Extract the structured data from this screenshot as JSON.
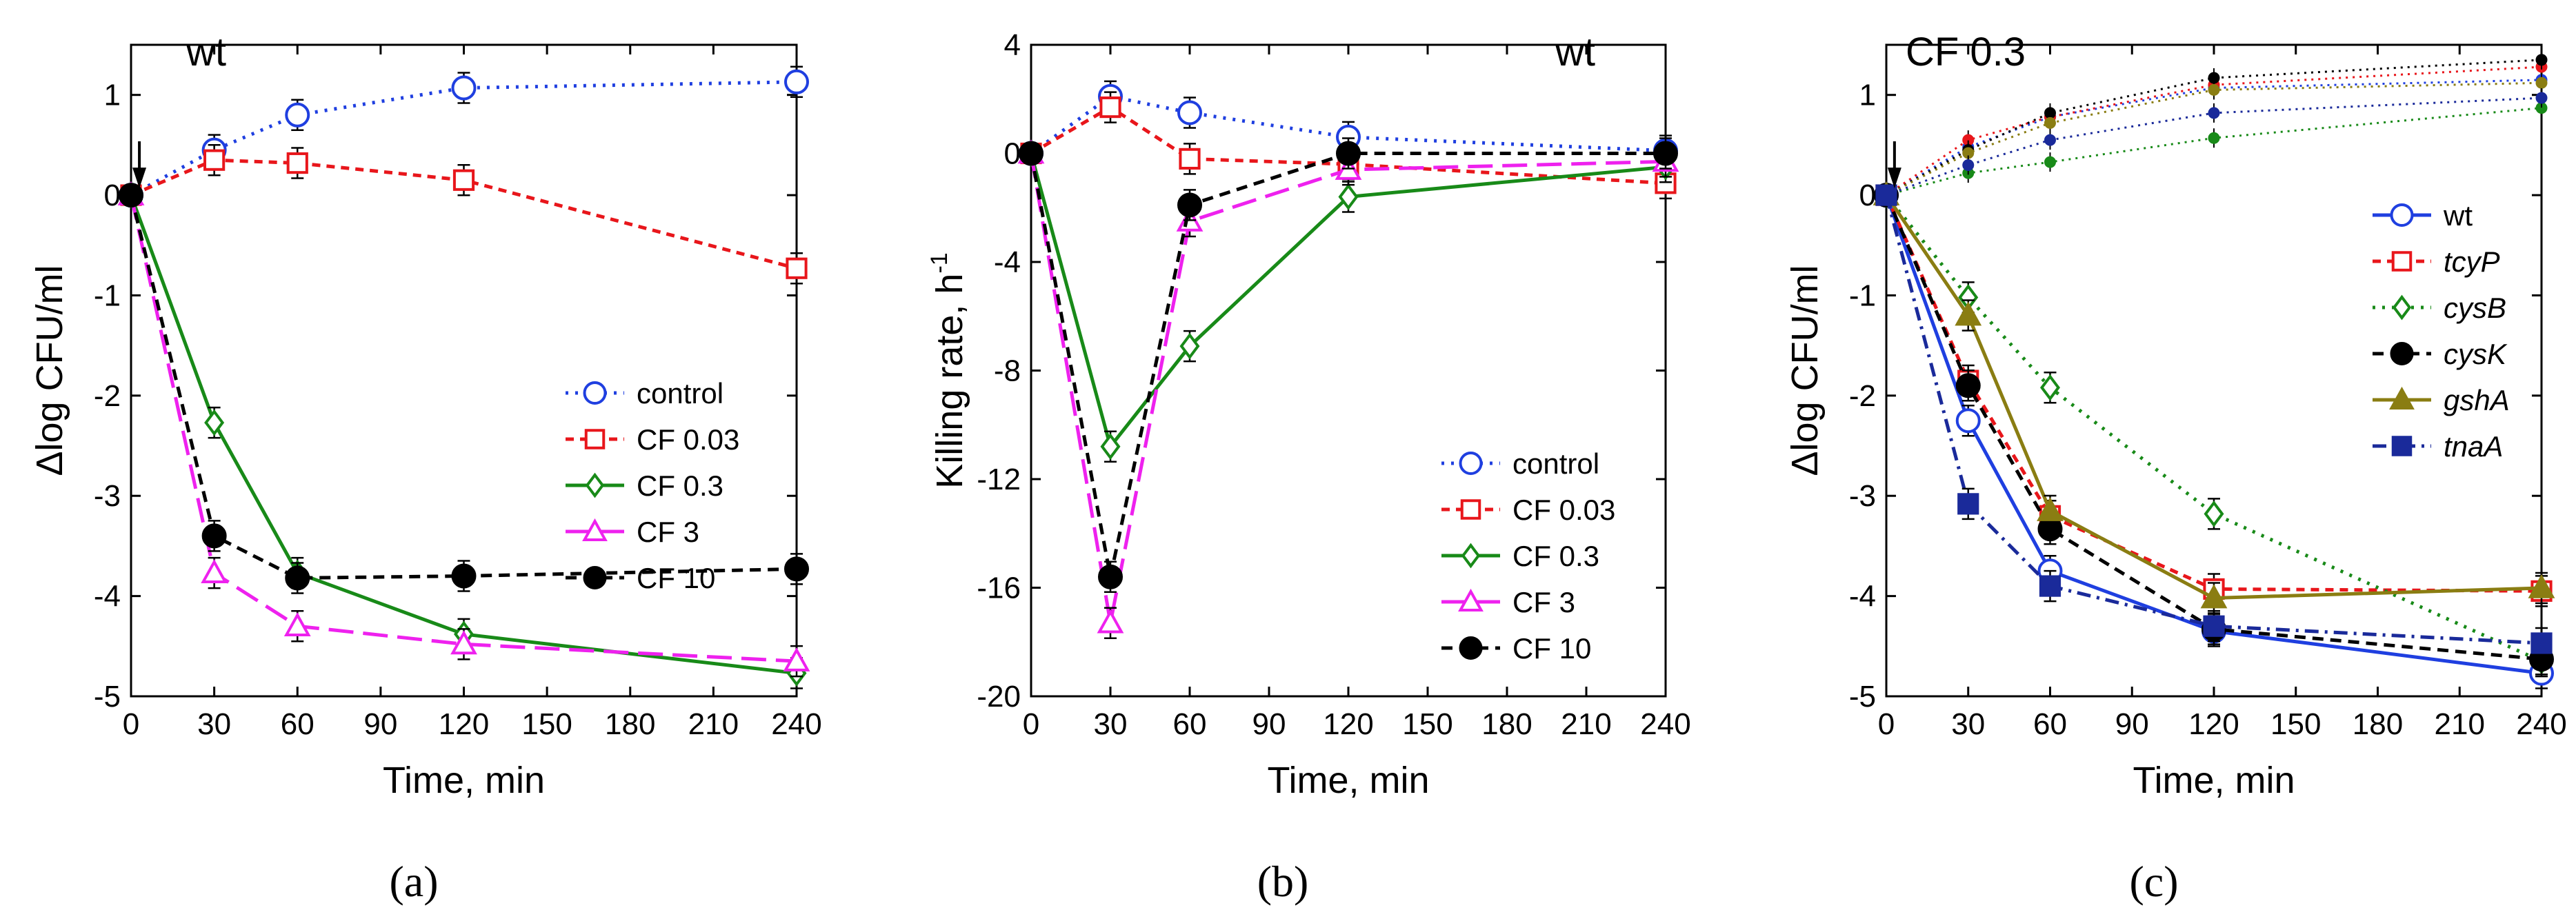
{
  "chart_data": [
    {
      "type": "line",
      "panel_label": "(a)",
      "title": "wt",
      "xlabel": "Time, min",
      "ylabel": "Δlog CFU/ml",
      "xlim": [
        0,
        240
      ],
      "ylim": [
        -5,
        1.5
      ],
      "xticks": [
        "0",
        "30",
        "60",
        "90",
        "120",
        "150",
        "180",
        "210",
        "240"
      ],
      "yticks": [
        "-5",
        "-4",
        "-3",
        "-2",
        "-1",
        "0",
        "1"
      ],
      "ytick_values": [
        -5,
        -4,
        -3,
        -2,
        -1,
        0,
        1
      ],
      "x": [
        0,
        30,
        60,
        120,
        240
      ],
      "arrow_x": 3,
      "legend": "right",
      "series": [
        {
          "name": "control",
          "color": "#1f3fe0",
          "marker": "circle",
          "dash": "dot",
          "values": [
            0,
            0.45,
            0.8,
            1.07,
            1.13
          ]
        },
        {
          "name": "CF 0.03",
          "color": "#e8161b",
          "marker": "square",
          "dash": "dash-short",
          "values": [
            0,
            0.35,
            0.32,
            0.15,
            -0.73
          ]
        },
        {
          "name": "CF 0.3",
          "color": "#188a18",
          "marker": "diamond",
          "dash": "solid",
          "values": [
            0,
            -2.27,
            -3.77,
            -4.38,
            -4.77
          ]
        },
        {
          "name": "CF 3",
          "color": "#ee21ee",
          "marker": "triangle",
          "dash": "dash-long",
          "values": [
            0,
            -3.77,
            -4.3,
            -4.48,
            -4.65
          ]
        },
        {
          "name": "CF 10",
          "color": "#000000",
          "marker": "filled-circle",
          "dash": "dash",
          "values": [
            0,
            -3.4,
            -3.82,
            -3.8,
            -3.73
          ]
        }
      ]
    },
    {
      "type": "line",
      "panel_label": "(b)",
      "title": "wt",
      "xlabel": "Time, min",
      "ylabel": "Killing rate, h",
      "ylabel_sup": "-1",
      "xlim": [
        0,
        240
      ],
      "ylim": [
        -20,
        4
      ],
      "xticks": [
        "0",
        "30",
        "60",
        "90",
        "120",
        "150",
        "180",
        "210",
        "240"
      ],
      "yticks": [
        "-20",
        "-16",
        "-12",
        "-8",
        "-4",
        "0",
        "4"
      ],
      "ytick_values": [
        -20,
        -16,
        -12,
        -8,
        -4,
        0,
        4
      ],
      "x": [
        0,
        30,
        60,
        120,
        240
      ],
      "legend": "right",
      "series": [
        {
          "name": "control",
          "color": "#1f3fe0",
          "marker": "circle",
          "dash": "dot",
          "values": [
            0,
            2.1,
            1.5,
            0.6,
            0.1
          ]
        },
        {
          "name": "CF 0.03",
          "color": "#e8161b",
          "marker": "square",
          "dash": "dash-short",
          "values": [
            0,
            1.7,
            -0.2,
            -0.4,
            -1.1
          ]
        },
        {
          "name": "CF 0.3",
          "color": "#188a18",
          "marker": "diamond",
          "dash": "solid",
          "values": [
            0,
            -10.8,
            -7.1,
            -1.6,
            -0.5
          ]
        },
        {
          "name": "CF 3",
          "color": "#ee21ee",
          "marker": "triangle",
          "dash": "dash-long",
          "values": [
            0,
            -17.3,
            -2.5,
            -0.6,
            -0.3
          ]
        },
        {
          "name": "CF 10",
          "color": "#000000",
          "marker": "filled-circle",
          "dash": "dash",
          "values": [
            0,
            -15.6,
            -1.9,
            0,
            0
          ]
        }
      ]
    },
    {
      "type": "line",
      "panel_label": "(c)",
      "title": "CF 0.3",
      "xlabel": "Time, min",
      "ylabel": "Δlog CFU/ml",
      "xlim": [
        0,
        240
      ],
      "ylim": [
        -5,
        1.5
      ],
      "xticks": [
        "0",
        "30",
        "60",
        "90",
        "120",
        "150",
        "180",
        "210",
        "240"
      ],
      "yticks": [
        "-5",
        "-4",
        "-3",
        "-2",
        "-1",
        "0",
        "1"
      ],
      "ytick_values": [
        -5,
        -4,
        -3,
        -2,
        -1,
        0,
        1
      ],
      "x": [
        0,
        30,
        60,
        120,
        240
      ],
      "arrow_x": 3,
      "legend": "right",
      "series": [
        {
          "name": "wt",
          "italic": false,
          "color": "#1f3fe0",
          "marker": "circle",
          "dash": "solid",
          "values": [
            0,
            -2.25,
            -3.75,
            -4.35,
            -4.77
          ]
        },
        {
          "name": "tcyP",
          "italic": true,
          "color": "#e8161b",
          "marker": "square",
          "dash": "dash-short",
          "values": [
            0,
            -1.85,
            -3.2,
            -3.93,
            -3.95
          ]
        },
        {
          "name": "cysB",
          "italic": true,
          "color": "#188a18",
          "marker": "diamond",
          "dash": "dot",
          "values": [
            0,
            -1.02,
            -1.92,
            -3.18,
            -4.65
          ]
        },
        {
          "name": "cysK",
          "italic": true,
          "color": "#000000",
          "marker": "filled-circle",
          "dash": "dash",
          "values": [
            0,
            -1.9,
            -3.33,
            -4.33,
            -4.63
          ]
        },
        {
          "name": "gshA",
          "italic": true,
          "color": "#8a7d12",
          "marker": "filled-triangle",
          "dash": "solid",
          "values": [
            0,
            -1.2,
            -3.15,
            -4.02,
            -3.92
          ]
        },
        {
          "name": "tnaA",
          "italic": true,
          "color": "#1a2a9a",
          "marker": "filled-square",
          "dash": "dashdot",
          "values": [
            0,
            -3.08,
            -3.9,
            -4.3,
            -4.47
          ]
        }
      ],
      "control_series": [
        {
          "name": "wt",
          "color": "#1f3fe0",
          "values": [
            0,
            0.48,
            0.78,
            1.07,
            1.15
          ]
        },
        {
          "name": "tcyP",
          "color": "#e8161b",
          "values": [
            0,
            0.55,
            0.78,
            1.1,
            1.28
          ]
        },
        {
          "name": "cysB",
          "color": "#188a18",
          "values": [
            0,
            0.22,
            0.33,
            0.57,
            0.87
          ]
        },
        {
          "name": "cysK",
          "color": "#000000",
          "values": [
            0,
            0.45,
            0.82,
            1.17,
            1.35
          ]
        },
        {
          "name": "gshA",
          "color": "#8a7d12",
          "values": [
            0,
            0.42,
            0.72,
            1.05,
            1.12
          ]
        },
        {
          "name": "tnaA",
          "color": "#1a2a9a",
          "values": [
            0,
            0.3,
            0.55,
            0.82,
            0.97
          ]
        }
      ]
    }
  ]
}
